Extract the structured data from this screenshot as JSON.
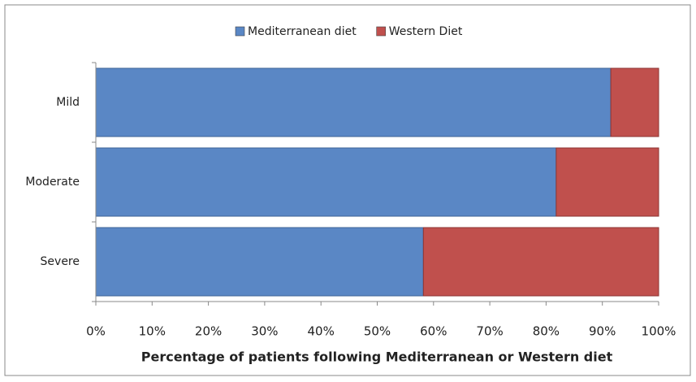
{
  "chart_data": {
    "type": "stacked-barh",
    "categories": [
      "Mild",
      "Moderate",
      "Severe"
    ],
    "series": [
      {
        "name": "Mediterranean diet",
        "color": "#5a87c5",
        "values": [
          91.5,
          81.8,
          58.2
        ]
      },
      {
        "name": "Western Diet",
        "color": "#c0504d",
        "values": [
          8.5,
          18.2,
          41.8
        ]
      }
    ],
    "xlabel": "Percentage of patients following Mediterranean or Western diet",
    "xlim": [
      0,
      100
    ],
    "xticks": [
      {
        "value": 0,
        "label": "0%"
      },
      {
        "value": 10,
        "label": "10%"
      },
      {
        "value": 20,
        "label": "20%"
      },
      {
        "value": 30,
        "label": "30%"
      },
      {
        "value": 40,
        "label": "40%"
      },
      {
        "value": 50,
        "label": "50%"
      },
      {
        "value": 60,
        "label": "60%"
      },
      {
        "value": 70,
        "label": "70%"
      },
      {
        "value": 80,
        "label": "80%"
      },
      {
        "value": 90,
        "label": "90%"
      },
      {
        "value": 100,
        "label": "100%"
      }
    ],
    "legend": "top"
  }
}
